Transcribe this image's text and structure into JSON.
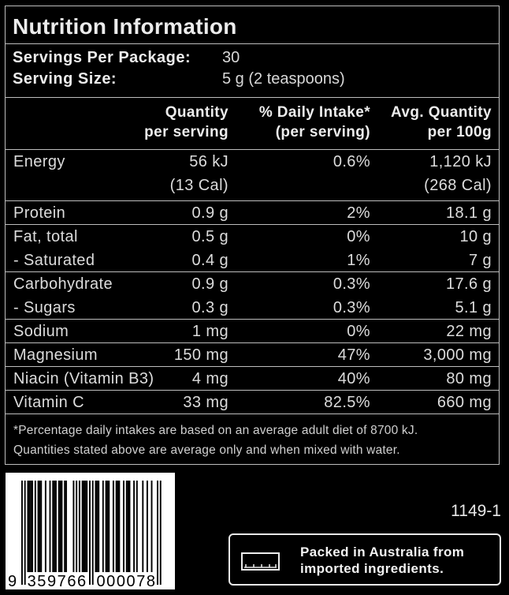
{
  "title": "Nutrition Information",
  "servings": [
    {
      "label": "Servings Per Package:",
      "value": "30"
    },
    {
      "label": "Serving Size:",
      "value": "5 g (2 teaspoons)"
    }
  ],
  "headers": [
    {
      "line1": "Quantity",
      "line2": "per serving"
    },
    {
      "line1": "% Daily Intake*",
      "line2": "(per serving)"
    },
    {
      "line1": "Avg. Quantity",
      "line2": "per 100g"
    }
  ],
  "groups": [
    {
      "rows": [
        {
          "name": "Energy",
          "qty": "56 kJ",
          "di": "0.6%",
          "avg": "1,120 kJ"
        },
        {
          "name": "",
          "qty": "(13 Cal)",
          "di": "",
          "avg": "(268 Cal)"
        }
      ]
    },
    {
      "rows": [
        {
          "name": "Protein",
          "qty": "0.9 g",
          "di": "2%",
          "avg": "18.1 g"
        }
      ]
    },
    {
      "rows": [
        {
          "name": "Fat, total",
          "qty": "0.5 g",
          "di": "0%",
          "avg": "10 g"
        },
        {
          "name": " - Saturated",
          "qty": "0.4 g",
          "di": "1%",
          "avg": "7 g"
        }
      ]
    },
    {
      "rows": [
        {
          "name": "Carbohydrate",
          "qty": "0.9 g",
          "di": "0.3%",
          "avg": "17.6 g"
        },
        {
          "name": " - Sugars",
          "qty": "0.3 g",
          "di": "0.3%",
          "avg": "5.1 g"
        }
      ]
    },
    {
      "rows": [
        {
          "name": "Sodium",
          "qty": "1 mg",
          "di": "0%",
          "avg": "22 mg"
        }
      ]
    },
    {
      "rows": [
        {
          "name": "Magnesium",
          "qty": "150 mg",
          "di": "47%",
          "avg": "3,000 mg"
        }
      ]
    },
    {
      "rows": [
        {
          "name": "Niacin (Vitamin B3)",
          "qty": "4 mg",
          "di": "40%",
          "avg": "80 mg"
        }
      ]
    },
    {
      "rows": [
        {
          "name": "Vitamin C",
          "qty": "33 mg",
          "di": "82.5%",
          "avg": "660 mg"
        }
      ]
    }
  ],
  "footnote": [
    "*Percentage daily intakes are based on an average adult diet of 8700 kJ.",
    "Quantities stated above are average only and when mixed with water."
  ],
  "barcode": {
    "digits": "9359766000078",
    "first": "9",
    "left": "359766",
    "right": "000078"
  },
  "product_code": "1149-1",
  "packed": {
    "icon": "country-of-origin-bar-icon",
    "line1": "Packed in Australia from",
    "line2": "imported ingredients."
  }
}
